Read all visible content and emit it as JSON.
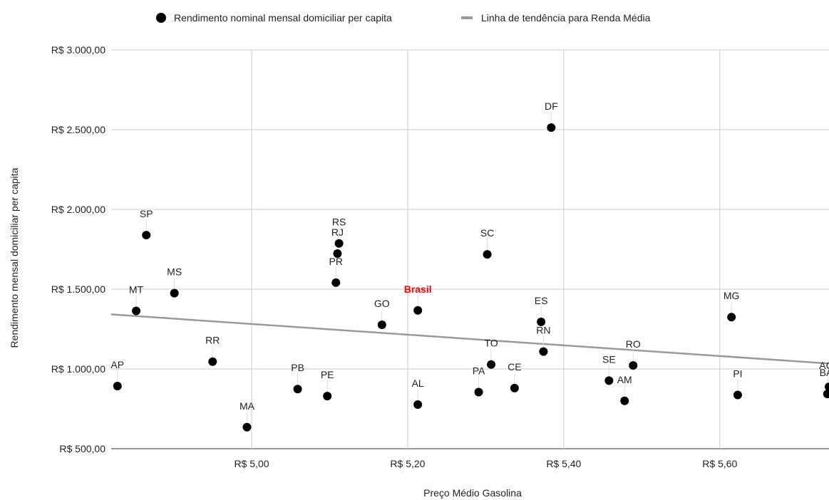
{
  "chart_data": {
    "type": "scatter",
    "xlabel": "Preço Médio Gasolina",
    "ylabel": "Rendimento mensal domiciliar per capita",
    "xlim": [
      4.82,
      5.74
    ],
    "ylim": [
      500,
      3000
    ],
    "x_ticks": [
      {
        "value": 5.0,
        "label": "R$ 5,00"
      },
      {
        "value": 5.2,
        "label": "R$ 5,20"
      },
      {
        "value": 5.4,
        "label": "R$ 5,40"
      },
      {
        "value": 5.6,
        "label": "R$ 5,60"
      }
    ],
    "y_ticks": [
      {
        "value": 500,
        "label": "R$ 500,00"
      },
      {
        "value": 1000,
        "label": "R$ 1.000,00"
      },
      {
        "value": 1500,
        "label": "R$ 1.500,00"
      },
      {
        "value": 2000,
        "label": "R$ 2.000,00"
      },
      {
        "value": 2500,
        "label": "R$ 2.500,00"
      },
      {
        "value": 3000,
        "label": "R$ 3.000,00"
      }
    ],
    "grid": true,
    "legend_position": "top",
    "series": [
      {
        "name": "Rendimento nominal mensal domiciliar per capita",
        "type": "scatter",
        "color": "#000000",
        "points": [
          {
            "label": "AP",
            "x": 4.828,
            "y": 893
          },
          {
            "label": "MT",
            "x": 4.852,
            "y": 1364
          },
          {
            "label": "SP",
            "x": 4.865,
            "y": 1839
          },
          {
            "label": "MS",
            "x": 4.901,
            "y": 1475
          },
          {
            "label": "RR",
            "x": 4.95,
            "y": 1046
          },
          {
            "label": "MA",
            "x": 4.994,
            "y": 635
          },
          {
            "label": "PB",
            "x": 5.059,
            "y": 874
          },
          {
            "label": "PE",
            "x": 5.097,
            "y": 830
          },
          {
            "label": "RS",
            "x": 5.112,
            "y": 1787
          },
          {
            "label": "RJ",
            "x": 5.11,
            "y": 1723
          },
          {
            "label": "PR",
            "x": 5.108,
            "y": 1541
          },
          {
            "label": "GO",
            "x": 5.167,
            "y": 1277
          },
          {
            "label": "Brasil",
            "x": 5.213,
            "y": 1367,
            "highlight": true
          },
          {
            "label": "AL",
            "x": 5.213,
            "y": 777
          },
          {
            "label": "PA",
            "x": 5.291,
            "y": 855
          },
          {
            "label": "SC",
            "x": 5.302,
            "y": 1718
          },
          {
            "label": "TO",
            "x": 5.307,
            "y": 1028
          },
          {
            "label": "CE",
            "x": 5.337,
            "y": 880
          },
          {
            "label": "ES",
            "x": 5.371,
            "y": 1295
          },
          {
            "label": "RN",
            "x": 5.374,
            "y": 1109
          },
          {
            "label": "DF",
            "x": 5.384,
            "y": 2513
          },
          {
            "label": "SE",
            "x": 5.458,
            "y": 927
          },
          {
            "label": "AM",
            "x": 5.478,
            "y": 800
          },
          {
            "label": "RO",
            "x": 5.489,
            "y": 1022
          },
          {
            "label": "MG",
            "x": 5.615,
            "y": 1325
          },
          {
            "label": "PI",
            "x": 5.623,
            "y": 837
          },
          {
            "label": "AC",
            "x": 5.74,
            "y": 888
          },
          {
            "label": "BA",
            "x": 5.738,
            "y": 843
          }
        ]
      },
      {
        "name": "Linha de tendência para Renda Média",
        "type": "trendline",
        "color": "#999999",
        "points": [
          {
            "x": 4.82,
            "y": 1342
          },
          {
            "x": 5.74,
            "y": 1034
          }
        ]
      }
    ]
  }
}
